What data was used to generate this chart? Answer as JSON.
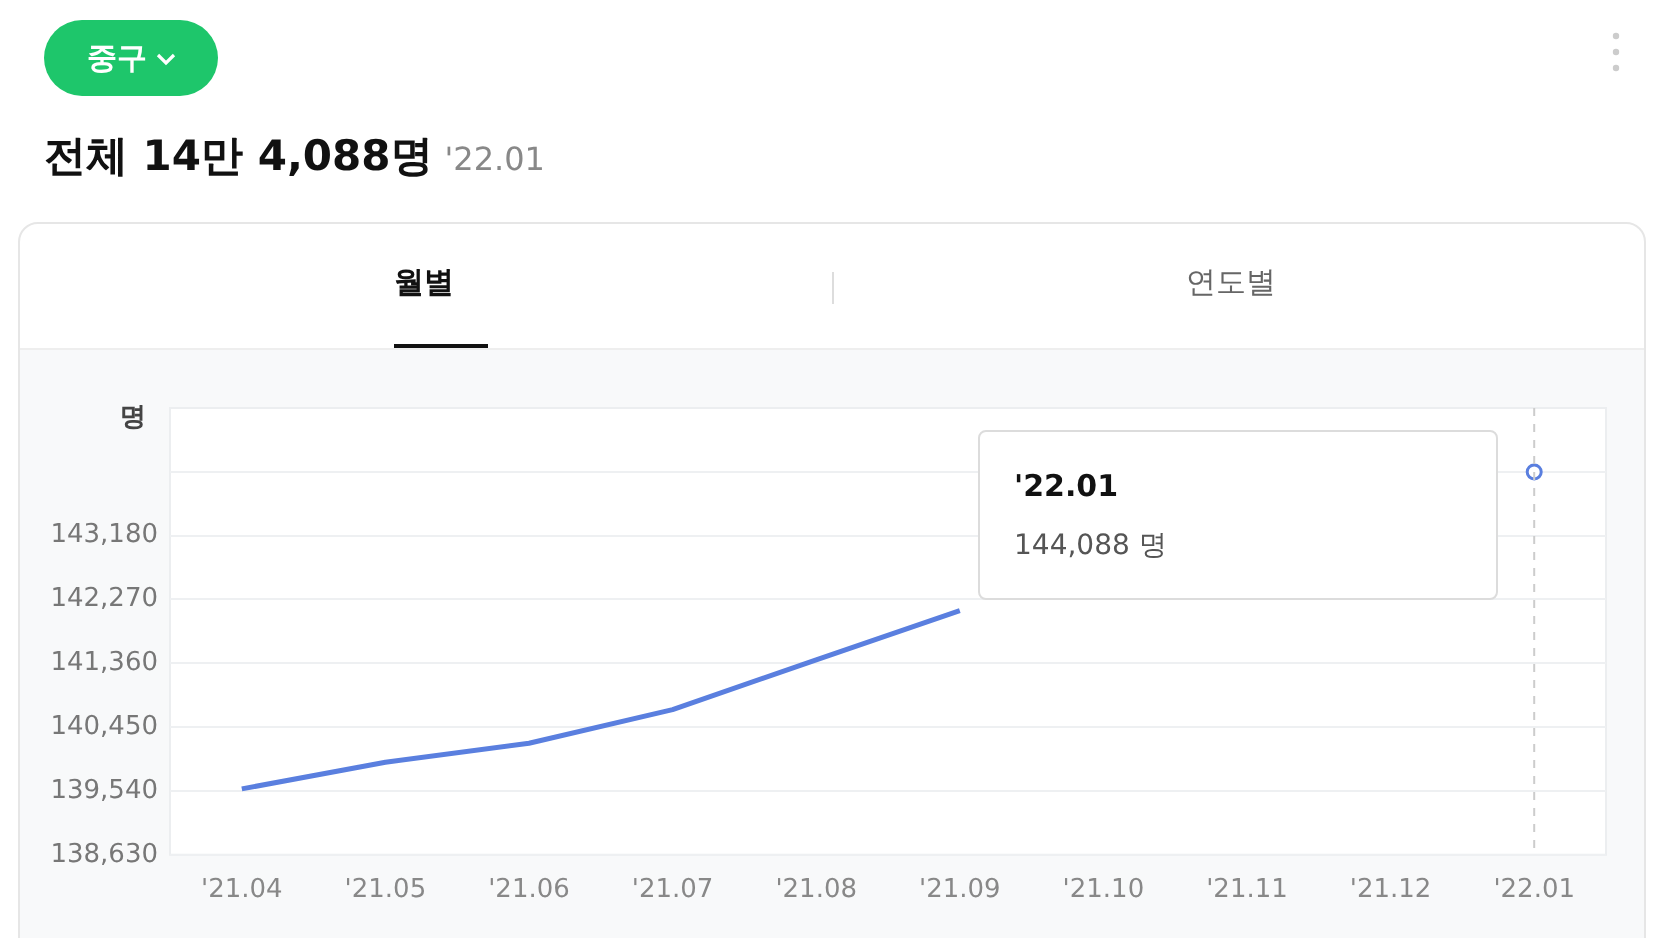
{
  "chart_data": {
    "type": "line",
    "title": "전체 14만 4,088명",
    "subtitle": "'22.01",
    "ylabel": "명",
    "categories": [
      "'21.04",
      "'21.05",
      "'21.06",
      "'21.07",
      "'21.08",
      "'21.09",
      "'21.10",
      "'21.11",
      "'21.12",
      "'22.01"
    ],
    "series": [
      {
        "color": "#5a7fdf",
        "values": [
          139570,
          139950,
          140220,
          140700,
          141410,
          142110,
          null,
          null,
          null,
          144088
        ]
      }
    ],
    "ylim": [
      138630,
      145000
    ],
    "yticks": [
      {
        "value": 138630,
        "label": "138,630"
      },
      {
        "value": 139540,
        "label": "139,540"
      },
      {
        "value": 140450,
        "label": "140,450"
      },
      {
        "value": 141360,
        "label": "141,360"
      },
      {
        "value": 142270,
        "label": "142,270"
      },
      {
        "value": 143180,
        "label": "143,180"
      },
      {
        "value": 144090,
        "label": null
      }
    ],
    "grid": "y",
    "legend": false,
    "ref_lines": [
      {
        "axis": "x",
        "value": "'22.01",
        "line_style": "dashed",
        "color": "#cccccc"
      }
    ],
    "annotations": [
      "중구",
      "월별",
      "연도별",
      "'22.01",
      "144,088 명"
    ]
  }
}
